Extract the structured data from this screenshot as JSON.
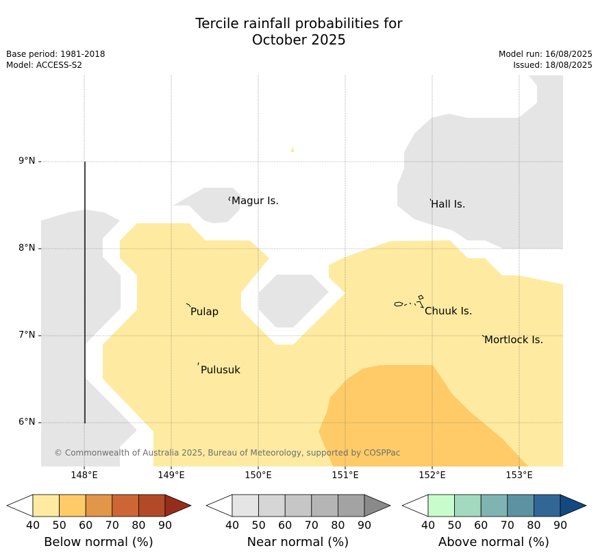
{
  "title": {
    "line1": "Tercile rainfall probabilities for",
    "line2": "October 2025"
  },
  "meta": {
    "base_period": "Base period: 1981-2018",
    "model": "Model: ACCESS-S2",
    "model_run": "Model run: 16/08/2025",
    "issued": "Issued: 18/08/2025"
  },
  "axes": {
    "lat_labels": [
      "9°N",
      "8°N",
      "7°N",
      "6°N"
    ],
    "lon_labels": [
      "148°E",
      "149°E",
      "150°E",
      "151°E",
      "152°E",
      "153°E"
    ]
  },
  "places": [
    {
      "name": "Magur Is."
    },
    {
      "name": "Hall Is."
    },
    {
      "name": "Pulap"
    },
    {
      "name": "Chuuk Is."
    },
    {
      "name": "Mortlock Is."
    },
    {
      "name": "Pulusuk"
    }
  ],
  "copyright": "© Commonwealth of Australia 2025, Bureau of Meteorology, supported by COSPPac",
  "colors": {
    "near_normal_fill": "#e5e5e5",
    "below_40_50": "#feeba1",
    "below_50_60": "#fecb68"
  },
  "colorbars": [
    {
      "title": "Below normal (%)",
      "ticks": [
        "40",
        "50",
        "60",
        "70",
        "80",
        "90"
      ],
      "colors": [
        "#ffffff",
        "#feeba1",
        "#fecb68",
        "#e29647",
        "#cd6634",
        "#b24a27",
        "#962d1c"
      ]
    },
    {
      "title": "Near normal (%)",
      "ticks": [
        "40",
        "50",
        "60",
        "70",
        "80",
        "90"
      ],
      "colors": [
        "#ffffff",
        "#e5e5e5",
        "#d6d6d6",
        "#c6c6c6",
        "#b5b5b5",
        "#a3a3a3",
        "#8a8a8a"
      ]
    },
    {
      "title": "Above normal (%)",
      "ticks": [
        "40",
        "50",
        "60",
        "70",
        "80",
        "90"
      ],
      "colors": [
        "#ffffff",
        "#c9fccc",
        "#a3d9bf",
        "#7fb4b2",
        "#5b93a3",
        "#326697",
        "#124a80"
      ]
    }
  ]
}
